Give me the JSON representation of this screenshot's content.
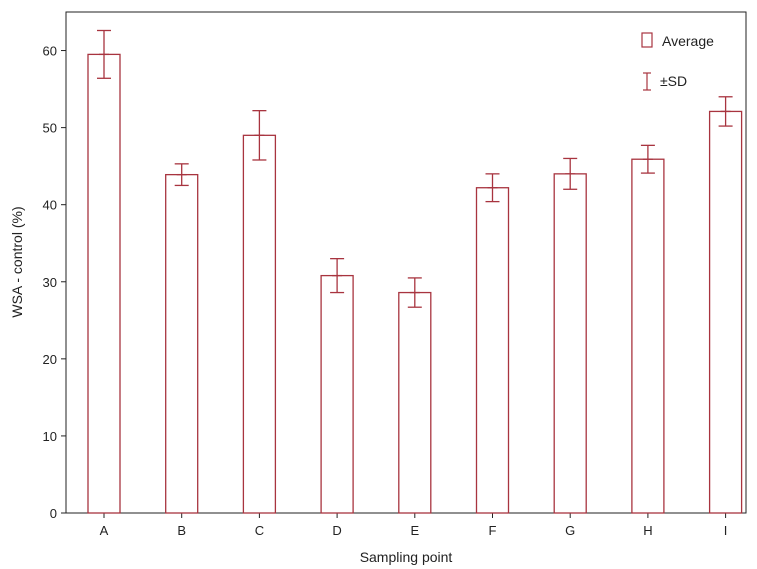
{
  "chart_data": {
    "type": "bar",
    "title": "",
    "xlabel": "Sampling point",
    "ylabel": "WSA - control (%)",
    "categories": [
      "A",
      "B",
      "C",
      "D",
      "E",
      "F",
      "G",
      "H",
      "I"
    ],
    "series": [
      {
        "name": "Average",
        "values": [
          59.5,
          43.9,
          49.0,
          30.8,
          28.6,
          42.2,
          44.0,
          45.9,
          52.1
        ],
        "sd": [
          3.1,
          1.4,
          3.2,
          2.2,
          1.9,
          1.8,
          2.0,
          1.8,
          1.9
        ]
      }
    ],
    "error_label": "±SD",
    "yticks": [
      0,
      10,
      20,
      30,
      40,
      50,
      60
    ],
    "ylim": [
      0,
      65
    ],
    "grid": false,
    "legend_position": "top-right",
    "colors": {
      "bar": "#a8343f",
      "axis": "#222222",
      "bar_fill": "#ffffff"
    }
  }
}
